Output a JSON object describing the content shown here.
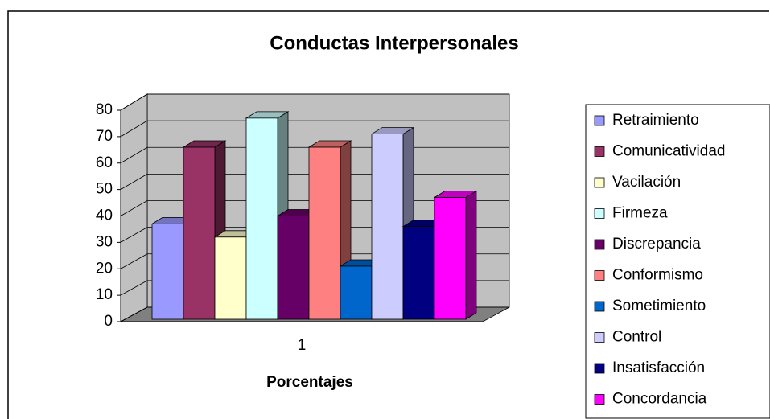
{
  "chart_data": {
    "type": "bar",
    "title": "Conductas Interpersonales",
    "x_label": "Porcentajes",
    "categories": [
      "1"
    ],
    "series": [
      {
        "name": "Retraimiento",
        "color": "#9999ff",
        "values": [
          37
        ]
      },
      {
        "name": "Comunicatividad",
        "color": "#993366",
        "values": [
          66
        ]
      },
      {
        "name": "Vacilación",
        "color": "#ffffcc",
        "values": [
          32
        ]
      },
      {
        "name": "Firmeza",
        "color": "#ccffff",
        "values": [
          77
        ]
      },
      {
        "name": "Discrepancia",
        "color": "#660066",
        "values": [
          40
        ]
      },
      {
        "name": "Conformismo",
        "color": "#ff8080",
        "values": [
          66
        ]
      },
      {
        "name": "Sometimiento",
        "color": "#0066cc",
        "values": [
          21
        ]
      },
      {
        "name": "Control",
        "color": "#ccccff",
        "values": [
          71
        ]
      },
      {
        "name": "Insatisfacción",
        "color": "#000080",
        "values": [
          36
        ]
      },
      {
        "name": "Concordancia",
        "color": "#ff00ff",
        "values": [
          47
        ]
      }
    ],
    "ylim": [
      0,
      80
    ],
    "yticks": [
      0,
      10,
      20,
      30,
      40,
      50,
      60,
      70,
      80
    ],
    "grid": true,
    "legend": "right"
  }
}
